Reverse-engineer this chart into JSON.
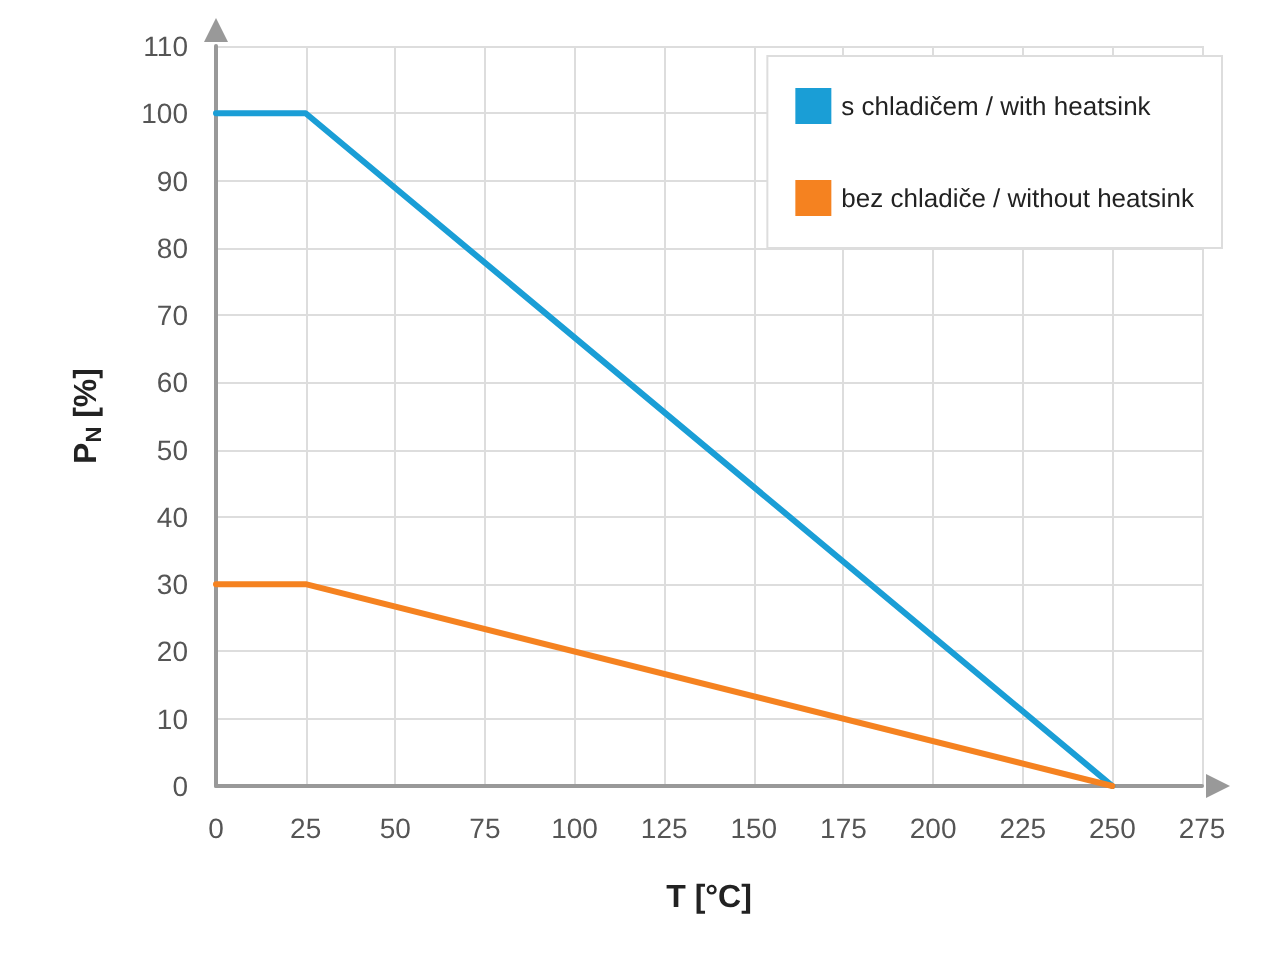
{
  "chart_data": {
    "type": "line",
    "xlabel": "T [°C]",
    "ylabel": "P$_{N}$ [%]",
    "x": [
      0,
      25,
      250
    ],
    "series": [
      {
        "name": "s chladičem / with heatsink",
        "color": "#1a9ed6",
        "values": [
          100,
          100,
          0
        ]
      },
      {
        "name": "bez chladiče / without heatsink",
        "color": "#f58220",
        "values": [
          30,
          30,
          0
        ]
      }
    ],
    "xlim": [
      0,
      275
    ],
    "xticks": [
      0,
      25,
      50,
      75,
      100,
      125,
      150,
      175,
      200,
      225,
      250,
      275
    ],
    "ylim": [
      0,
      110
    ],
    "yticks": [
      0,
      10,
      20,
      30,
      40,
      50,
      60,
      70,
      80,
      90,
      100,
      110
    ],
    "grid": true,
    "legend": "top right",
    "marker": "none",
    "line_style": "solid"
  }
}
